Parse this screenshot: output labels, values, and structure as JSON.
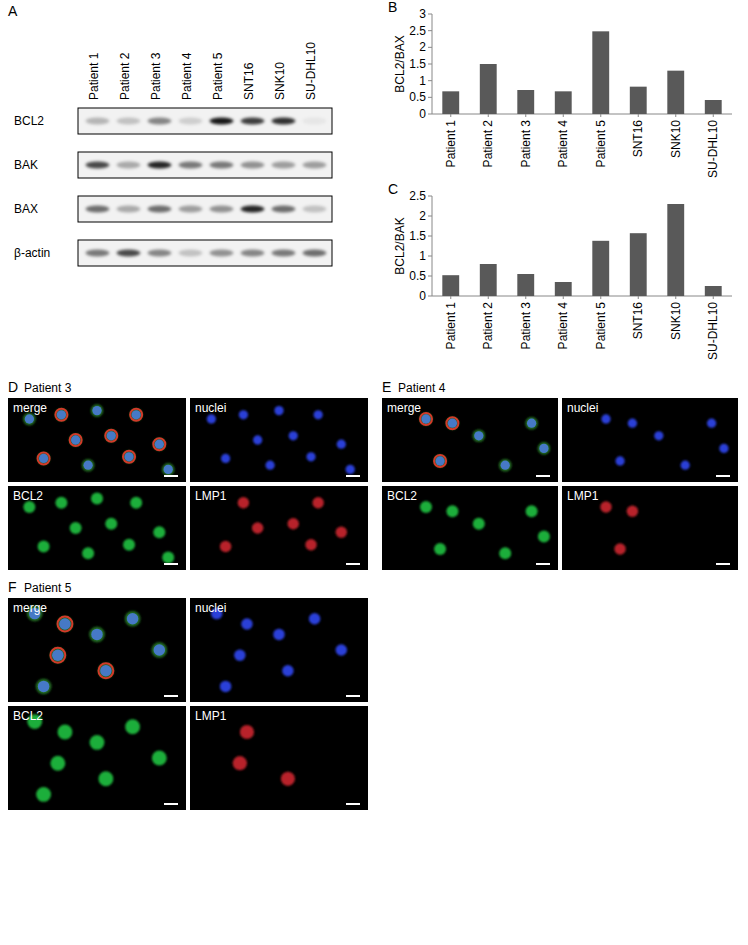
{
  "letters": [
    "A",
    "B",
    "C",
    "D",
    "E",
    "F"
  ],
  "blot": {
    "lanes": [
      "Patient 1",
      "Patient 2",
      "Patient 3",
      "Patient 4",
      "Patient 5",
      "SNT16",
      "SNK10",
      "SU-DHL10"
    ],
    "rows": [
      {
        "name": "BCL2",
        "intensity": [
          0.25,
          0.2,
          0.45,
          0.15,
          0.9,
          0.75,
          0.8,
          0.05
        ]
      },
      {
        "name": "BAK",
        "intensity": [
          0.7,
          0.3,
          0.85,
          0.5,
          0.5,
          0.4,
          0.35,
          0.35
        ]
      },
      {
        "name": "BAX",
        "intensity": [
          0.55,
          0.3,
          0.55,
          0.35,
          0.4,
          0.85,
          0.55,
          0.2
        ]
      },
      {
        "name": "β-actin",
        "intensity": [
          0.5,
          0.7,
          0.45,
          0.2,
          0.4,
          0.45,
          0.5,
          0.55
        ]
      }
    ]
  },
  "chart_data": [
    {
      "type": "bar",
      "y_label": "BCL2/BAX",
      "categories": [
        "Patient 1",
        "Patient 2",
        "Patient 3",
        "Patient 4",
        "Patient 5",
        "SNT16",
        "SNK10",
        "SU-DHL10"
      ],
      "values": [
        0.68,
        1.5,
        0.72,
        0.68,
        2.48,
        0.82,
        1.3,
        0.42
      ],
      "color": "#595959",
      "ylim": [
        0,
        3
      ],
      "yticks": [
        0,
        0.5,
        1,
        1.5,
        2,
        2.5,
        3
      ],
      "grid": false
    },
    {
      "type": "bar",
      "y_label": "BCL2/BAK",
      "categories": [
        "Patient 1",
        "Patient 2",
        "Patient 3",
        "Patient 4",
        "Patient 5",
        "SNT16",
        "SNK10",
        "SU-DHL10"
      ],
      "values": [
        0.52,
        0.8,
        0.55,
        0.35,
        1.38,
        1.57,
        2.3,
        0.25
      ],
      "color": "#595959",
      "ylim": [
        0,
        2.5
      ],
      "yticks": [
        0,
        0.5,
        1,
        1.5,
        2,
        2.5
      ],
      "grid": false
    }
  ],
  "micrographs": [
    {
      "title": "Patient 3",
      "panels": [
        "merge",
        "nuclei",
        "BCL2",
        "LMP1"
      ]
    },
    {
      "title": "Patient 4",
      "panels": [
        "merge",
        "nuclei",
        "BCL2",
        "LMP1"
      ]
    },
    {
      "title": "Patient 5",
      "panels": [
        "merge",
        "nuclei",
        "BCL2",
        "LMP1"
      ]
    }
  ]
}
